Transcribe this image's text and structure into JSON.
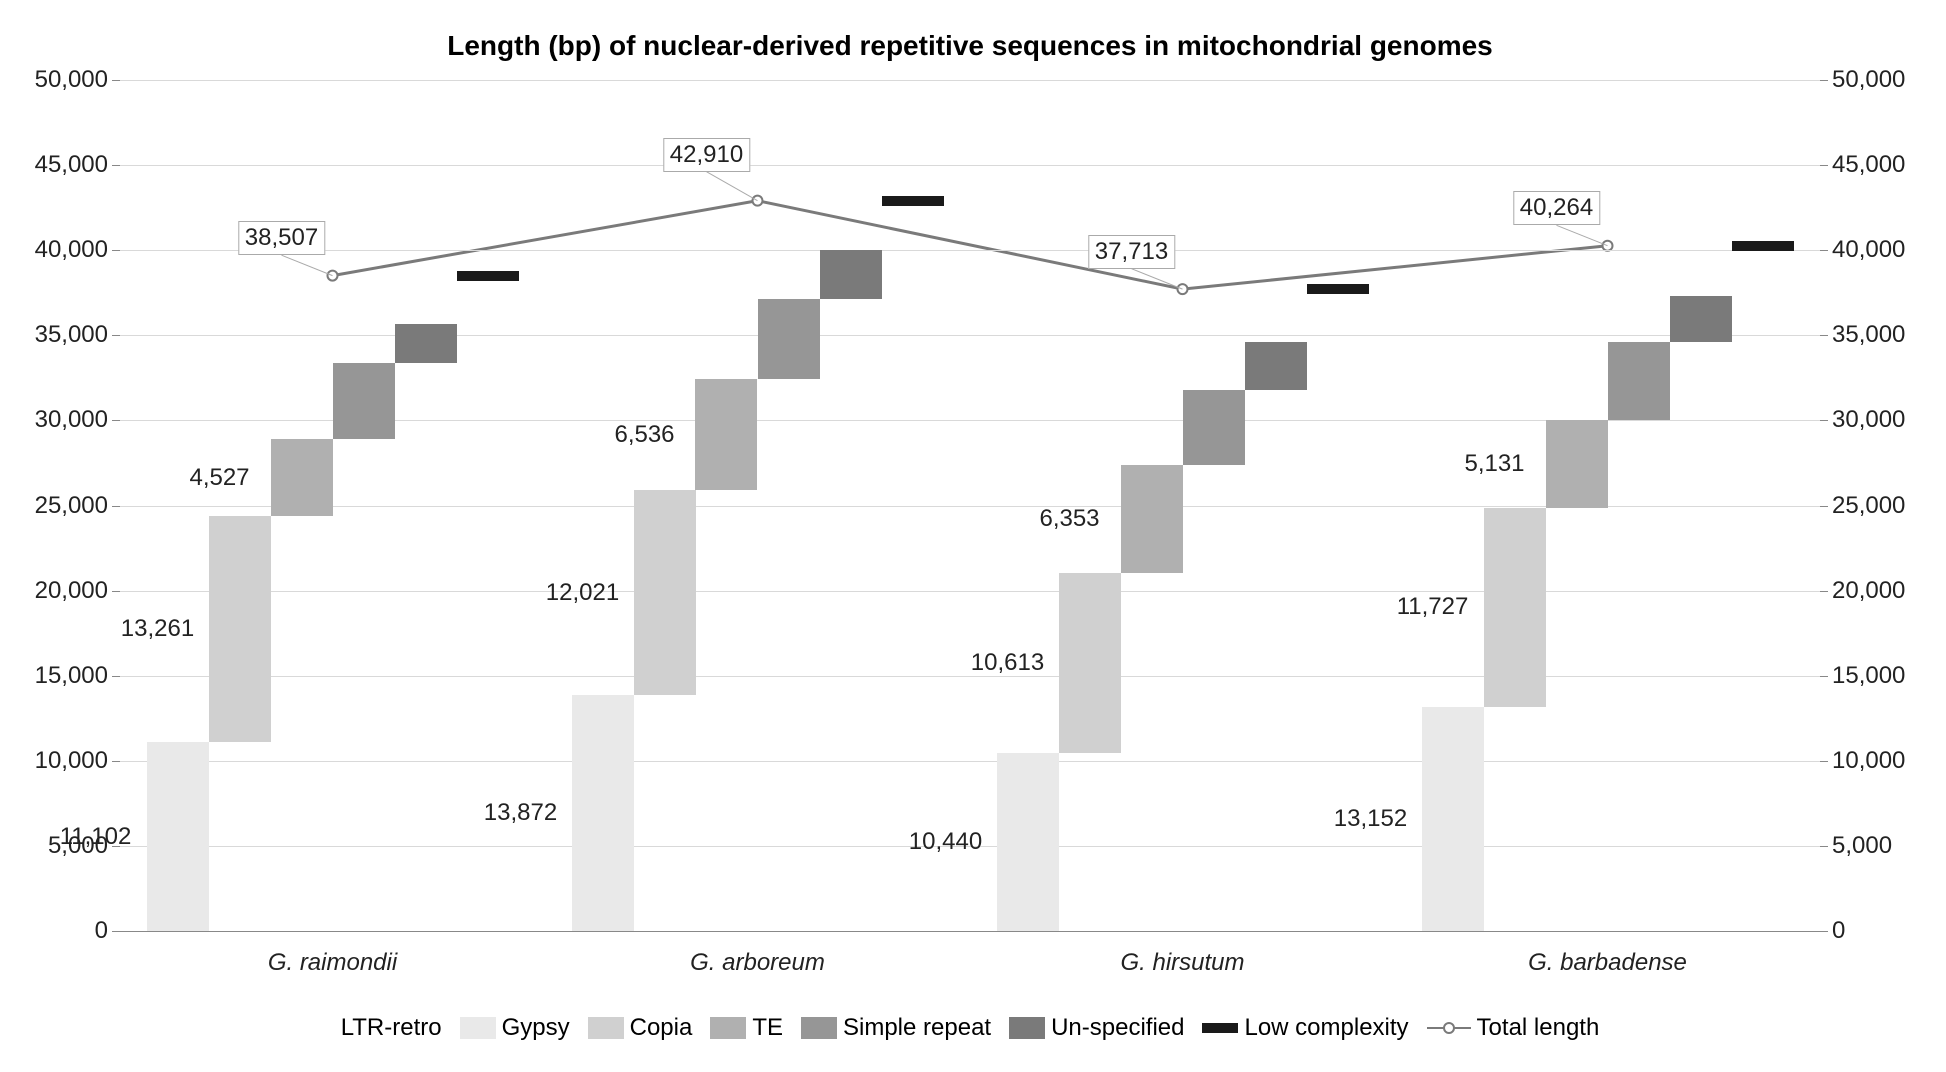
{
  "chart": {
    "type": "stacked-stepped-bar-with-line",
    "title": "Length (bp) of nuclear-derived repetitive sequences in mitochondrial genomes",
    "title_fontsize": 28,
    "label_fontsize": 24,
    "background_color": "#ffffff",
    "grid_color": "#d9d9d9",
    "axis_color": "#888888",
    "text_color": "#222222",
    "y_axis": {
      "min": 0,
      "max": 50000,
      "tick_step": 5000,
      "tick_labels": [
        "0",
        "5,000",
        "10,000",
        "15,000",
        "20,000",
        "25,000",
        "30,000",
        "35,000",
        "40,000",
        "45,000",
        "50,000"
      ]
    },
    "series_meta": [
      {
        "key": "ltr_retro",
        "label": "LTR-retro",
        "is_label_only": true
      },
      {
        "key": "gypsy",
        "label": "Gypsy",
        "color": "#e9e9e9",
        "show_value": true
      },
      {
        "key": "copia",
        "label": "Copia",
        "color": "#d0d0d0",
        "show_value": true
      },
      {
        "key": "te",
        "label": "TE",
        "color": "#b0b0b0",
        "show_value": true
      },
      {
        "key": "simple_repeat",
        "label": "Simple repeat",
        "color": "#969696",
        "show_value": false
      },
      {
        "key": "unspecified",
        "label": "Un-specified",
        "color": "#7a7a7a",
        "show_value": false
      },
      {
        "key": "low_complexity",
        "label": "Low complexity",
        "color": "#1a1a1a",
        "thin": true,
        "show_value": false
      }
    ],
    "line_series": {
      "key": "total_length",
      "label": "Total length",
      "color": "#7a7a7a",
      "marker_border": "#7a7a7a",
      "marker_fill": "#ffffff",
      "line_width": 3,
      "callouts": true
    },
    "categories": [
      {
        "label": "G. raimondii",
        "values": {
          "gypsy": 11102,
          "copia": 13261,
          "te": 4527,
          "simple_repeat": 4500,
          "unspecified": 2300,
          "low_complexity": 2817
        },
        "value_labels": {
          "gypsy": "11,102",
          "copia": "13,261",
          "te": "4,527"
        },
        "total": 38507,
        "total_label": "38,507"
      },
      {
        "label": "G. arboreum",
        "values": {
          "gypsy": 13872,
          "copia": 12021,
          "te": 6536,
          "simple_repeat": 4700,
          "unspecified": 2900,
          "low_complexity": 2881
        },
        "value_labels": {
          "gypsy": "13,872",
          "copia": "12,021",
          "te": "6,536"
        },
        "total": 42910,
        "total_label": "42,910"
      },
      {
        "label": "G. hirsutum",
        "values": {
          "gypsy": 10440,
          "copia": 10613,
          "te": 6353,
          "simple_repeat": 4400,
          "unspecified": 2800,
          "low_complexity": 3107
        },
        "value_labels": {
          "gypsy": "10,440",
          "copia": "10,613",
          "te": "6,353"
        },
        "total": 37713,
        "total_label": "37,713"
      },
      {
        "label": "G. barbadense",
        "values": {
          "gypsy": 13152,
          "copia": 11727,
          "te": 5131,
          "simple_repeat": 4600,
          "unspecified": 2700,
          "low_complexity": 2954
        },
        "value_labels": {
          "gypsy": "13,152",
          "copia": "11,727",
          "te": "5,131"
        },
        "total": 40264,
        "total_label": "40,264"
      }
    ],
    "callout_positions": [
      {
        "dx_pct": -3,
        "dy_val": 1200
      },
      {
        "dx_pct": -3,
        "dy_val": 1700
      },
      {
        "dx_pct": -3,
        "dy_val": 1200
      },
      {
        "dx_pct": -3,
        "dy_val": 1200
      }
    ]
  }
}
